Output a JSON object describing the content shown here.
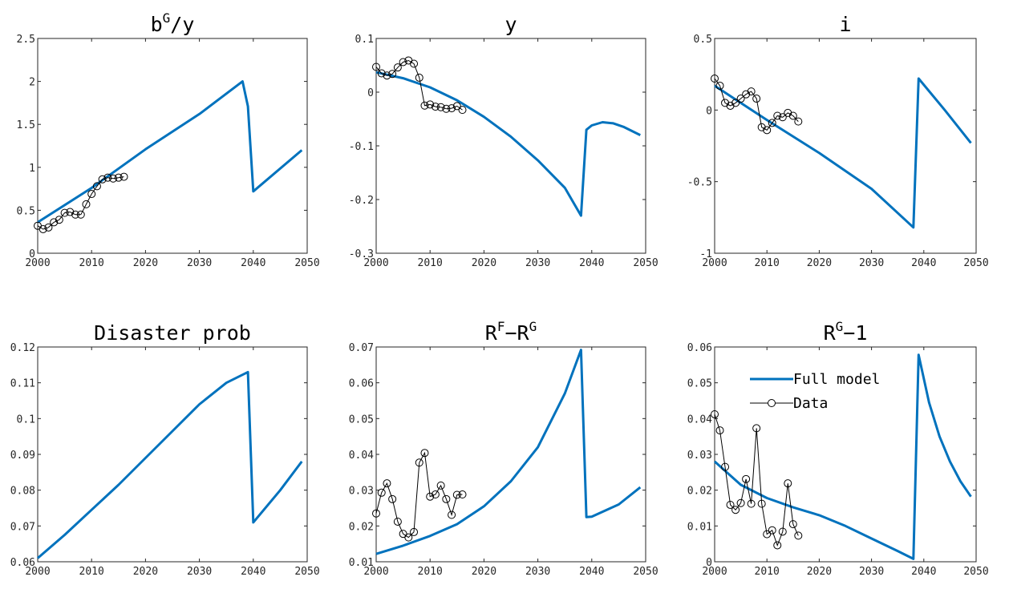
{
  "colors": {
    "model": "#0072BD",
    "data": "#000000",
    "axes": "#262626"
  },
  "legend": {
    "model_label": "Full model",
    "data_label": "Data",
    "placement": "top-right",
    "panel": 5
  },
  "chart_data": [
    {
      "type": "line",
      "title": {
        "base": "b",
        "sup": "G",
        "rest": "/y"
      },
      "xlim": [
        2000,
        2050
      ],
      "ylim": [
        0,
        2.5
      ],
      "xticks": [
        2000,
        2010,
        2020,
        2030,
        2040,
        2050
      ],
      "yticks": [
        0,
        0.5,
        1,
        1.5,
        2,
        2.5
      ],
      "ytick_labels": [
        "0",
        "0.5",
        "1",
        "1.5",
        "2",
        "2.5"
      ],
      "series": [
        {
          "role": "model",
          "x": [
            2000,
            2010,
            2020,
            2030,
            2038,
            2039,
            2040,
            2049
          ],
          "y": [
            0.36,
            0.76,
            1.21,
            1.62,
            2.0,
            1.71,
            0.72,
            1.2
          ]
        },
        {
          "role": "data",
          "x": [
            2000,
            2001,
            2002,
            2003,
            2004,
            2005,
            2006,
            2007,
            2008,
            2009,
            2010,
            2011,
            2012,
            2013,
            2014,
            2015,
            2016
          ],
          "y": [
            0.32,
            0.28,
            0.3,
            0.36,
            0.39,
            0.47,
            0.48,
            0.45,
            0.45,
            0.57,
            0.69,
            0.78,
            0.86,
            0.88,
            0.87,
            0.88,
            0.89
          ]
        }
      ]
    },
    {
      "type": "line",
      "title": {
        "base": "y",
        "sup": "",
        "rest": ""
      },
      "xlim": [
        2000,
        2050
      ],
      "ylim": [
        -0.3,
        0.1
      ],
      "xticks": [
        2000,
        2010,
        2020,
        2030,
        2040,
        2050
      ],
      "yticks": [
        -0.3,
        -0.2,
        -0.1,
        0,
        0.1
      ],
      "ytick_labels": [
        "-0.3",
        "-0.2",
        "-0.1",
        "0",
        "0.1"
      ],
      "series": [
        {
          "role": "model",
          "x": [
            2000,
            2005,
            2010,
            2015,
            2020,
            2025,
            2030,
            2035,
            2038,
            2039,
            2040,
            2042,
            2044,
            2046,
            2049
          ],
          "y": [
            0.037,
            0.026,
            0.009,
            -0.015,
            -0.046,
            -0.083,
            -0.127,
            -0.178,
            -0.23,
            -0.07,
            -0.062,
            -0.056,
            -0.058,
            -0.065,
            -0.08
          ]
        },
        {
          "role": "data",
          "x": [
            2000,
            2001,
            2002,
            2003,
            2004,
            2005,
            2006,
            2007,
            2008,
            2009,
            2010,
            2011,
            2012,
            2013,
            2014,
            2015,
            2016
          ],
          "y": [
            0.047,
            0.035,
            0.031,
            0.034,
            0.046,
            0.056,
            0.059,
            0.053,
            0.027,
            -0.025,
            -0.023,
            -0.027,
            -0.028,
            -0.031,
            -0.03,
            -0.026,
            -0.033
          ]
        }
      ]
    },
    {
      "type": "line",
      "title": {
        "base": "i",
        "sup": "",
        "rest": ""
      },
      "xlim": [
        2000,
        2050
      ],
      "ylim": [
        -1,
        0.5
      ],
      "xticks": [
        2000,
        2010,
        2020,
        2030,
        2040,
        2050
      ],
      "yticks": [
        -1,
        -0.5,
        0,
        0.5
      ],
      "ytick_labels": [
        "-1",
        "-0.5",
        "0",
        "0.5"
      ],
      "series": [
        {
          "role": "model",
          "x": [
            2000,
            2010,
            2020,
            2030,
            2038,
            2039,
            2044,
            2049
          ],
          "y": [
            0.17,
            -0.07,
            -0.3,
            -0.55,
            -0.82,
            0.22,
            0.0,
            -0.23
          ]
        },
        {
          "role": "data",
          "x": [
            2000,
            2001,
            2002,
            2003,
            2004,
            2005,
            2006,
            2007,
            2008,
            2009,
            2010,
            2011,
            2012,
            2013,
            2014,
            2015,
            2016
          ],
          "y": [
            0.22,
            0.17,
            0.05,
            0.03,
            0.05,
            0.08,
            0.11,
            0.13,
            0.08,
            -0.12,
            -0.14,
            -0.09,
            -0.04,
            -0.05,
            -0.02,
            -0.04,
            -0.08
          ]
        }
      ]
    },
    {
      "type": "line",
      "title": {
        "base": "Disaster prob",
        "sup": "",
        "rest": ""
      },
      "xlim": [
        2000,
        2050
      ],
      "ylim": [
        0.06,
        0.12
      ],
      "xticks": [
        2000,
        2010,
        2020,
        2030,
        2040,
        2050
      ],
      "yticks": [
        0.06,
        0.07,
        0.08,
        0.09,
        0.1,
        0.11,
        0.12
      ],
      "ytick_labels": [
        "0.06",
        "0.07",
        "0.08",
        "0.09",
        "0.1",
        "0.11",
        "0.12"
      ],
      "series": [
        {
          "role": "model",
          "x": [
            2000,
            2005,
            2010,
            2015,
            2020,
            2025,
            2030,
            2035,
            2039,
            2040,
            2045,
            2049
          ],
          "y": [
            0.061,
            0.0675,
            0.0745,
            0.0815,
            0.089,
            0.0965,
            0.104,
            0.11,
            0.113,
            0.071,
            0.08,
            0.088
          ]
        }
      ]
    },
    {
      "type": "line",
      "title": {
        "base": "R",
        "sup": "F",
        "rest": "−R",
        "sup2": "G"
      },
      "xlim": [
        2000,
        2050
      ],
      "ylim": [
        0.01,
        0.07
      ],
      "xticks": [
        2000,
        2010,
        2020,
        2030,
        2040,
        2050
      ],
      "yticks": [
        0.01,
        0.02,
        0.03,
        0.04,
        0.05,
        0.06,
        0.07
      ],
      "ytick_labels": [
        "0.01",
        "0.02",
        "0.03",
        "0.04",
        "0.05",
        "0.06",
        "0.07"
      ],
      "series": [
        {
          "role": "model",
          "x": [
            2000,
            2005,
            2010,
            2015,
            2020,
            2025,
            2030,
            2035,
            2038,
            2039,
            2040,
            2045,
            2049
          ],
          "y": [
            0.0122,
            0.0145,
            0.0172,
            0.0205,
            0.0255,
            0.0325,
            0.042,
            0.057,
            0.0692,
            0.0225,
            0.0226,
            0.026,
            0.0308
          ]
        },
        {
          "role": "data",
          "x": [
            2000,
            2001,
            2002,
            2003,
            2004,
            2005,
            2006,
            2007,
            2008,
            2009,
            2010,
            2011,
            2012,
            2013,
            2014,
            2015,
            2016
          ],
          "y": [
            0.0235,
            0.0293,
            0.0319,
            0.0275,
            0.0212,
            0.0178,
            0.0168,
            0.0183,
            0.0377,
            0.0404,
            0.0282,
            0.0288,
            0.0313,
            0.0275,
            0.0231,
            0.0287,
            0.0288
          ]
        }
      ]
    },
    {
      "type": "line",
      "title": {
        "base": "R",
        "sup": "G",
        "rest": "−1"
      },
      "xlim": [
        2000,
        2050
      ],
      "ylim": [
        0,
        0.06
      ],
      "xticks": [
        2000,
        2010,
        2020,
        2030,
        2040,
        2050
      ],
      "yticks": [
        0,
        0.01,
        0.02,
        0.03,
        0.04,
        0.05,
        0.06
      ],
      "ytick_labels": [
        "0",
        "0.01",
        "0.02",
        "0.03",
        "0.04",
        "0.05",
        "0.06"
      ],
      "series": [
        {
          "role": "model",
          "x": [
            2000,
            2005,
            2010,
            2015,
            2020,
            2025,
            2030,
            2035,
            2038,
            2039,
            2041,
            2043,
            2045,
            2047,
            2049
          ],
          "y": [
            0.028,
            0.0215,
            0.0178,
            0.0152,
            0.013,
            0.01,
            0.0065,
            0.003,
            0.0008,
            0.0578,
            0.0445,
            0.035,
            0.028,
            0.0225,
            0.0182
          ]
        },
        {
          "role": "data",
          "x": [
            2000,
            2001,
            2002,
            2003,
            2004,
            2005,
            2006,
            2007,
            2008,
            2009,
            2010,
            2011,
            2012,
            2013,
            2014,
            2015,
            2016
          ],
          "y": [
            0.0412,
            0.0367,
            0.0265,
            0.0159,
            0.0145,
            0.0164,
            0.0231,
            0.0162,
            0.0373,
            0.0162,
            0.0077,
            0.0088,
            0.0046,
            0.0084,
            0.0219,
            0.0105,
            0.0073
          ]
        }
      ]
    }
  ]
}
